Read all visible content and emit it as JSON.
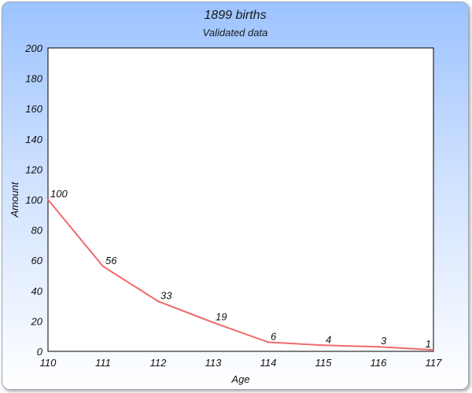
{
  "colors": {
    "series_line": "#f06a6a",
    "plot_background": "#ffffff",
    "card_gradient_top": "#9cc3ff",
    "card_gradient_bottom": "#ffffff"
  },
  "chart_data": {
    "type": "line",
    "title": "1899 births",
    "subtitle": "Validated data",
    "xlabel": "Age",
    "ylabel": "Amount",
    "categories": [
      "110",
      "111",
      "112",
      "113",
      "114",
      "115",
      "116",
      "117"
    ],
    "series": [
      {
        "values": [
          100,
          56,
          33,
          19,
          6,
          4,
          3,
          1
        ]
      }
    ],
    "ylim": [
      0,
      200
    ],
    "yticks": [
      "0",
      "20",
      "40",
      "60",
      "80",
      "100",
      "120",
      "140",
      "160",
      "180",
      "200"
    ],
    "data_labels": [
      "100",
      "56",
      "33",
      "19",
      "6",
      "4",
      "3",
      "1"
    ],
    "grid": false,
    "legend": "none"
  }
}
